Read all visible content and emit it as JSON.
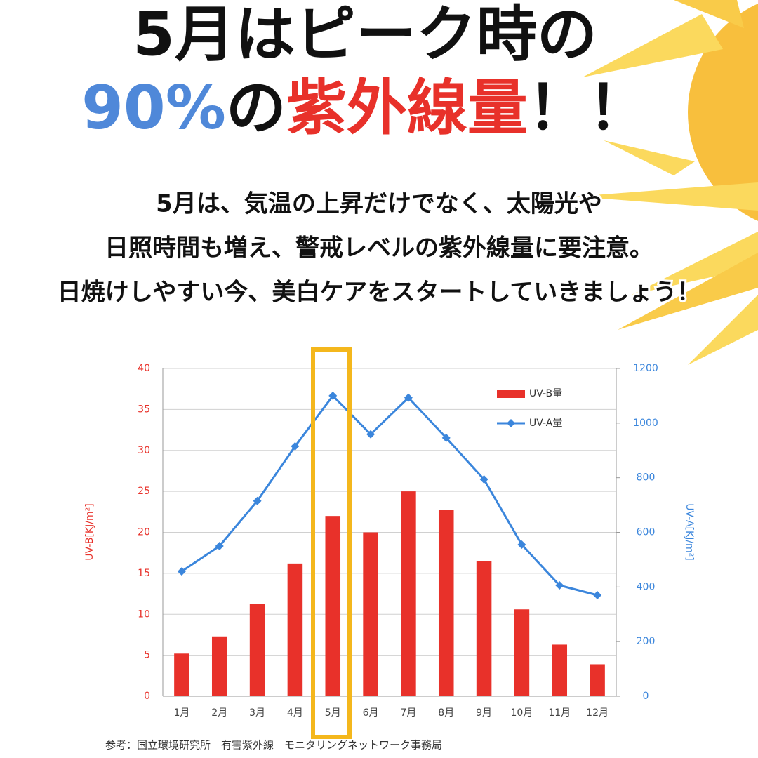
{
  "header": {
    "line1": "5月はピーク時の",
    "line2_a": "90%",
    "line2_b": "の",
    "line2_c": "紫外線量",
    "line2_d": "！！"
  },
  "body": [
    "5月は、気温の上昇だけでなく、太陽光や",
    "日照時間も増え、警戒レベルの紫外線量に要注意。",
    "日焼けしやすい今、美白ケアをスタートしていきましょう！"
  ],
  "chart_data": {
    "type": "bar",
    "categories": [
      "1月",
      "2月",
      "3月",
      "4月",
      "5月",
      "6月",
      "7月",
      "8月",
      "9月",
      "10月",
      "11月",
      "12月"
    ],
    "series": [
      {
        "name": "UV-B量",
        "color": "#e8312a",
        "values": [
          5.2,
          7.3,
          11.3,
          16.2,
          22,
          20,
          25,
          22.7,
          16.5,
          10.6,
          6.3,
          3.9
        ]
      },
      {
        "name": "UV-A量",
        "color": "#3b86dc",
        "type": "line",
        "axis": "y2",
        "values": [
          457,
          550,
          715,
          915,
          1100,
          959,
          1093,
          946,
          794,
          555,
          406,
          370
        ]
      }
    ],
    "ylabel": "UV-B[KJ/m²]",
    "y2label": "UV-A[KJ/m²]",
    "ylim": [
      0,
      40
    ],
    "yticks": [
      0,
      5,
      10,
      15,
      20,
      25,
      30,
      35,
      40
    ],
    "y2lim": [
      0,
      1200
    ],
    "y2ticks": [
      0,
      200,
      400,
      600,
      800,
      1000,
      1200
    ],
    "grid": true,
    "legend": "upper right",
    "source": "参考：国立環境研究所　有害紫外線　モニタリングネットワーク事務局"
  }
}
